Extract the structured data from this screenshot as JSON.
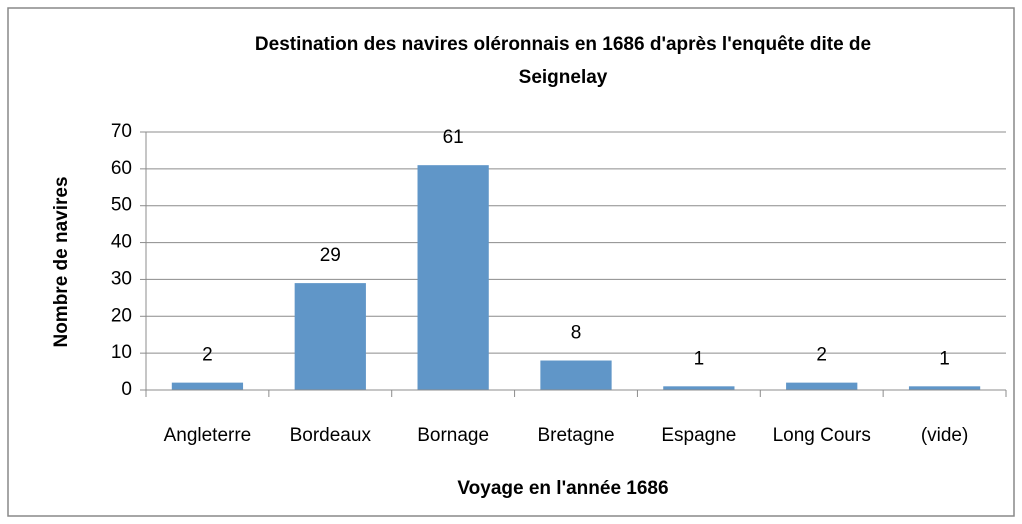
{
  "chart_data": {
    "type": "bar",
    "title": "Destination des navires oléronnais en 1686 d'après l'enquête dite de Seignelay",
    "x_label": "Voyage en l'année 1686",
    "y_label": "Nombre de navires",
    "categories": [
      "Angleterre",
      "Bordeaux",
      "Bornage",
      "Bretagne",
      "Espagne",
      "Long Cours",
      "(vide)"
    ],
    "values": [
      2,
      29,
      61,
      8,
      1,
      2,
      1
    ],
    "color": "#6096c8",
    "ylim": [
      0,
      70
    ],
    "yticks": [
      0,
      10,
      20,
      30,
      40,
      50,
      60,
      70
    ],
    "grid": true
  }
}
